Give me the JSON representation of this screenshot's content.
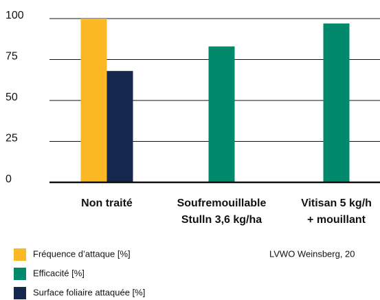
{
  "chart_data": {
    "type": "bar",
    "categories": [
      [
        "Non traité"
      ],
      [
        "Soufremouillable",
        "Stulln 3,6 kg/ha"
      ],
      [
        "Vitisan 5 kg/h",
        "+ mouillant"
      ]
    ],
    "series": [
      {
        "name": "Fréquence d’attaque [%]",
        "color": "#fbb724",
        "values": [
          100,
          null,
          null
        ]
      },
      {
        "name": "Efficacité [%]",
        "color": "#00896a",
        "values": [
          null,
          83,
          97
        ]
      },
      {
        "name": "Surface foliaire attaquée [%]",
        "color": "#14284e",
        "values": [
          68,
          null,
          null
        ]
      }
    ],
    "ylim": [
      0,
      100
    ],
    "yticks": [
      0,
      25,
      50,
      75,
      100
    ],
    "grid": true,
    "source": "LVWO Weinsberg, 20"
  }
}
